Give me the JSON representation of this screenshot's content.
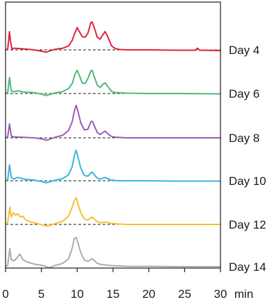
{
  "chart_data": {
    "type": "line",
    "title": "",
    "xlabel": "min",
    "ylabel": "",
    "xlim": [
      0,
      30
    ],
    "x_ticks": [
      "0",
      "5",
      "10",
      "15",
      "20",
      "25",
      "30"
    ],
    "grid": false,
    "legend": "none",
    "baseline_style": "dashed",
    "series": [
      {
        "name": "Day 4",
        "color": "#E0233E",
        "x": [
          0,
          0.3,
          0.55,
          0.7,
          0.9,
          1.2,
          2.0,
          3.0,
          4.0,
          5.0,
          5.7,
          6.3,
          7.0,
          8.0,
          8.8,
          9.3,
          9.7,
          10.0,
          10.3,
          10.7,
          11.1,
          11.5,
          11.9,
          12.1,
          12.4,
          12.8,
          13.2,
          13.6,
          13.9,
          14.3,
          14.8,
          15.3,
          16.0,
          17.0,
          20.0,
          24.0,
          26.5,
          26.8,
          27.1,
          30.0
        ],
        "y": [
          0,
          0.02,
          0.55,
          0.25,
          0.03,
          0.05,
          0.04,
          0.02,
          0.0,
          -0.04,
          -0.07,
          -0.02,
          0.02,
          0.05,
          0.12,
          0.28,
          0.52,
          0.67,
          0.55,
          0.4,
          0.38,
          0.5,
          0.82,
          0.84,
          0.66,
          0.38,
          0.32,
          0.46,
          0.55,
          0.38,
          0.12,
          0.04,
          0.01,
          0.0,
          0.0,
          -0.01,
          -0.01,
          0.05,
          -0.01,
          -0.02
        ]
      },
      {
        "name": "Day 6",
        "color": "#4DB87A",
        "x": [
          0,
          0.3,
          0.55,
          0.8,
          1.2,
          1.6,
          2.0,
          2.4,
          3.0,
          4.0,
          5.0,
          5.7,
          6.3,
          7.0,
          8.0,
          8.8,
          9.3,
          9.7,
          10.0,
          10.3,
          10.7,
          11.1,
          11.5,
          11.9,
          12.1,
          12.4,
          12.8,
          13.2,
          13.6,
          13.9,
          14.3,
          14.8,
          15.3,
          16.0,
          17.0,
          20.0,
          24.0,
          30.0
        ],
        "y": [
          0,
          0.03,
          0.48,
          0.08,
          0.05,
          0.08,
          0.07,
          0.05,
          0.04,
          0.03,
          -0.02,
          -0.06,
          -0.02,
          0.02,
          0.06,
          0.15,
          0.3,
          0.58,
          0.7,
          0.55,
          0.32,
          0.3,
          0.45,
          0.68,
          0.7,
          0.5,
          0.25,
          0.18,
          0.28,
          0.32,
          0.2,
          0.06,
          0.03,
          0.02,
          0.01,
          0.0,
          0.0,
          -0.01
        ]
      },
      {
        "name": "Day 8",
        "color": "#9B5BB5",
        "x": [
          0,
          0.3,
          0.55,
          0.8,
          1.2,
          2.0,
          3.0,
          4.0,
          5.0,
          5.7,
          6.3,
          7.0,
          8.0,
          8.8,
          9.3,
          9.6,
          9.85,
          10.1,
          10.5,
          11.0,
          11.5,
          11.9,
          12.1,
          12.4,
          12.8,
          13.2,
          13.6,
          13.9,
          14.3,
          14.8,
          15.3,
          16.0,
          17.0,
          20.0,
          24.0,
          30.0
        ],
        "y": [
          0,
          0.03,
          0.42,
          0.05,
          0.03,
          0.02,
          0.01,
          0.0,
          -0.03,
          -0.07,
          -0.03,
          0.02,
          0.08,
          0.22,
          0.48,
          0.8,
          0.98,
          0.8,
          0.45,
          0.24,
          0.26,
          0.48,
          0.5,
          0.36,
          0.16,
          0.1,
          0.16,
          0.2,
          0.12,
          0.04,
          0.02,
          0.01,
          0.0,
          0.0,
          0.0,
          0.0
        ]
      },
      {
        "name": "Day 10",
        "color": "#37B6DE",
        "x": [
          0,
          0.3,
          0.55,
          0.8,
          1.2,
          1.6,
          2.0,
          2.4,
          3.0,
          4.0,
          5.0,
          5.7,
          6.3,
          7.0,
          8.0,
          8.8,
          9.3,
          9.6,
          9.85,
          10.1,
          10.5,
          11.0,
          11.5,
          11.9,
          12.1,
          12.4,
          12.8,
          13.2,
          13.6,
          13.9,
          14.3,
          14.8,
          15.3,
          16.0,
          17.0,
          20.0,
          24.0,
          30.0
        ],
        "y": [
          0,
          0.03,
          0.48,
          0.1,
          0.05,
          0.1,
          0.09,
          0.06,
          0.04,
          0.02,
          -0.02,
          -0.06,
          -0.02,
          0.02,
          0.07,
          0.18,
          0.42,
          0.75,
          0.92,
          0.72,
          0.38,
          0.16,
          0.14,
          0.24,
          0.26,
          0.18,
          0.08,
          0.05,
          0.08,
          0.1,
          0.06,
          0.02,
          0.01,
          0.0,
          0.0,
          0.0,
          -0.01,
          -0.01
        ]
      },
      {
        "name": "Day 12",
        "color": "#F2C230",
        "x": [
          0,
          0.3,
          0.6,
          0.8,
          1.1,
          1.4,
          1.7,
          2.1,
          2.4,
          2.8,
          3.2,
          3.8,
          4.5,
          5.2,
          5.8,
          6.3,
          7.0,
          8.0,
          8.8,
          9.3,
          9.6,
          9.85,
          10.1,
          10.5,
          11.0,
          11.5,
          11.9,
          12.1,
          12.4,
          12.8,
          13.2,
          13.6,
          14.0,
          14.6,
          15.3,
          16.0,
          17.0,
          20.0,
          24.0,
          30.0
        ],
        "y": [
          0,
          0.05,
          0.52,
          0.22,
          0.35,
          0.28,
          0.32,
          0.22,
          0.25,
          0.14,
          0.1,
          0.06,
          0.02,
          -0.02,
          -0.05,
          -0.02,
          0.03,
          0.1,
          0.25,
          0.52,
          0.72,
          0.8,
          0.62,
          0.35,
          0.16,
          0.13,
          0.2,
          0.22,
          0.16,
          0.08,
          0.05,
          0.06,
          0.07,
          0.04,
          0.02,
          0.01,
          0.0,
          0.0,
          0.0,
          0.0
        ]
      },
      {
        "name": "Day 14",
        "color": "#A9ACB6",
        "x": [
          0,
          0.3,
          0.6,
          0.8,
          1.2,
          1.6,
          2.0,
          2.4,
          2.8,
          3.3,
          4.0,
          4.8,
          5.5,
          6.0,
          6.4,
          7.0,
          8.0,
          8.8,
          9.3,
          9.6,
          9.85,
          10.1,
          10.5,
          11.0,
          11.5,
          11.9,
          12.1,
          12.4,
          12.8,
          13.3,
          14.0,
          15.0,
          16.0,
          17.0,
          20.0,
          24.0,
          30.0
        ],
        "y": [
          0,
          0.04,
          0.55,
          0.2,
          0.18,
          0.26,
          0.38,
          0.22,
          0.16,
          0.12,
          0.08,
          0.05,
          0.02,
          -0.03,
          -0.01,
          0.04,
          0.1,
          0.24,
          0.55,
          0.85,
          0.88,
          0.72,
          0.42,
          0.2,
          0.16,
          0.22,
          0.24,
          0.18,
          0.1,
          0.07,
          0.05,
          0.03,
          0.02,
          0.01,
          0.01,
          0.0,
          0.0
        ]
      }
    ]
  }
}
